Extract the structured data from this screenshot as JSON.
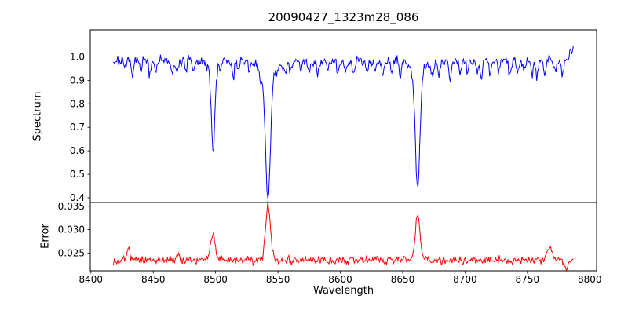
{
  "chart_data": {
    "type": "line",
    "title": "20090427_1323m28_086",
    "xlabel": "Wavelength",
    "grid": false,
    "background": "#ffffff",
    "xlim": [
      8399.5,
      8805.5
    ],
    "x_range": [
      8418,
      8787
    ],
    "xticks": [
      8400,
      8450,
      8500,
      8550,
      8600,
      8650,
      8700,
      8750,
      8800
    ],
    "xtick_labels": [
      "8400",
      "8450",
      "8500",
      "8550",
      "8600",
      "8650",
      "8700",
      "8750",
      "8800"
    ],
    "panels": [
      {
        "name": "spectrum",
        "ylabel": "Spectrum",
        "ylim": [
          0.38,
          1.115
        ],
        "yticks": [
          1.0,
          0.9,
          0.8,
          0.7,
          0.6,
          0.5,
          0.4
        ],
        "ytick_labels": [
          "1.0",
          "0.9",
          "0.8",
          "0.7",
          "0.6",
          "0.5",
          "0.4"
        ],
        "color": "#0000ff"
      },
      {
        "name": "error",
        "ylabel": "Error",
        "ylim": [
          0.0212,
          0.0358
        ],
        "yticks": [
          0.035,
          0.03,
          0.025
        ],
        "ytick_labels": [
          "0.035",
          "0.030",
          "0.025"
        ],
        "color": "#ff0000"
      }
    ],
    "spectrum_model": {
      "seed": 7,
      "continuum": 0.983,
      "noise_std": 0.011,
      "sample_step": 0.7,
      "minor_width": 0.9,
      "end_rise": [
        8782,
        0.012
      ],
      "major_absorption_lines": [
        {
          "center": 8498.0,
          "core_depth": 0.34,
          "core_width": 1.3,
          "wing_depth": 0.05,
          "wing_width": 4.0,
          "min_value": 0.6
        },
        {
          "center": 8542.0,
          "core_depth": 0.52,
          "core_width": 1.9,
          "wing_depth": 0.07,
          "wing_width": 6.0,
          "min_value": 0.4
        },
        {
          "center": 8662.0,
          "core_depth": 0.49,
          "core_width": 1.7,
          "wing_depth": 0.065,
          "wing_width": 5.5,
          "min_value": 0.44
        }
      ],
      "minor_absorption_lines": [
        [
          8427,
          0.04
        ],
        [
          8433,
          0.055
        ],
        [
          8440,
          0.05
        ],
        [
          8447,
          0.06
        ],
        [
          8452,
          0.04
        ],
        [
          8465,
          0.07
        ],
        [
          8469,
          0.05
        ],
        [
          8476,
          0.04
        ],
        [
          8482,
          0.05
        ],
        [
          8514,
          0.065
        ],
        [
          8518,
          0.05
        ],
        [
          8527,
          0.04
        ],
        [
          8536,
          0.05
        ],
        [
          8556,
          0.05
        ],
        [
          8560,
          0.04
        ],
        [
          8568,
          0.04
        ],
        [
          8575,
          0.05
        ],
        [
          8582,
          0.055
        ],
        [
          8590,
          0.04
        ],
        [
          8598,
          0.06
        ],
        [
          8604,
          0.04
        ],
        [
          8611,
          0.05
        ],
        [
          8621,
          0.045
        ],
        [
          8628,
          0.04
        ],
        [
          8634,
          0.05
        ],
        [
          8641,
          0.045
        ],
        [
          8648,
          0.06
        ],
        [
          8674,
          0.065
        ],
        [
          8679,
          0.05
        ],
        [
          8688,
          0.075
        ],
        [
          8696,
          0.05
        ],
        [
          8702,
          0.045
        ],
        [
          8710,
          0.05
        ],
        [
          8713,
          0.06
        ],
        [
          8720,
          0.05
        ],
        [
          8727,
          0.045
        ],
        [
          8736,
          0.06
        ],
        [
          8742,
          0.05
        ],
        [
          8747,
          0.045
        ],
        [
          8754,
          0.05
        ],
        [
          8758,
          0.055
        ],
        [
          8764,
          0.05
        ],
        [
          8772,
          0.045
        ],
        [
          8778,
          0.05
        ]
      ]
    },
    "error_model": {
      "seed": 13,
      "baseline": 0.0235,
      "noise_std": 0.00042,
      "sample_step": 0.7,
      "peaks": [
        {
          "center": 8498,
          "height": 0.0055,
          "width": 1.8
        },
        {
          "center": 8542,
          "height": 0.0115,
          "width": 2.0
        },
        {
          "center": 8662,
          "height": 0.0098,
          "width": 1.9
        },
        {
          "center": 8430,
          "height": 0.0026,
          "width": 1.2
        },
        {
          "center": 8470,
          "height": 0.0012,
          "width": 1.2
        },
        {
          "center": 8768,
          "height": 0.0028,
          "width": 2.0
        },
        {
          "center": 8781,
          "height": -0.0018,
          "width": 1.5
        }
      ]
    }
  }
}
